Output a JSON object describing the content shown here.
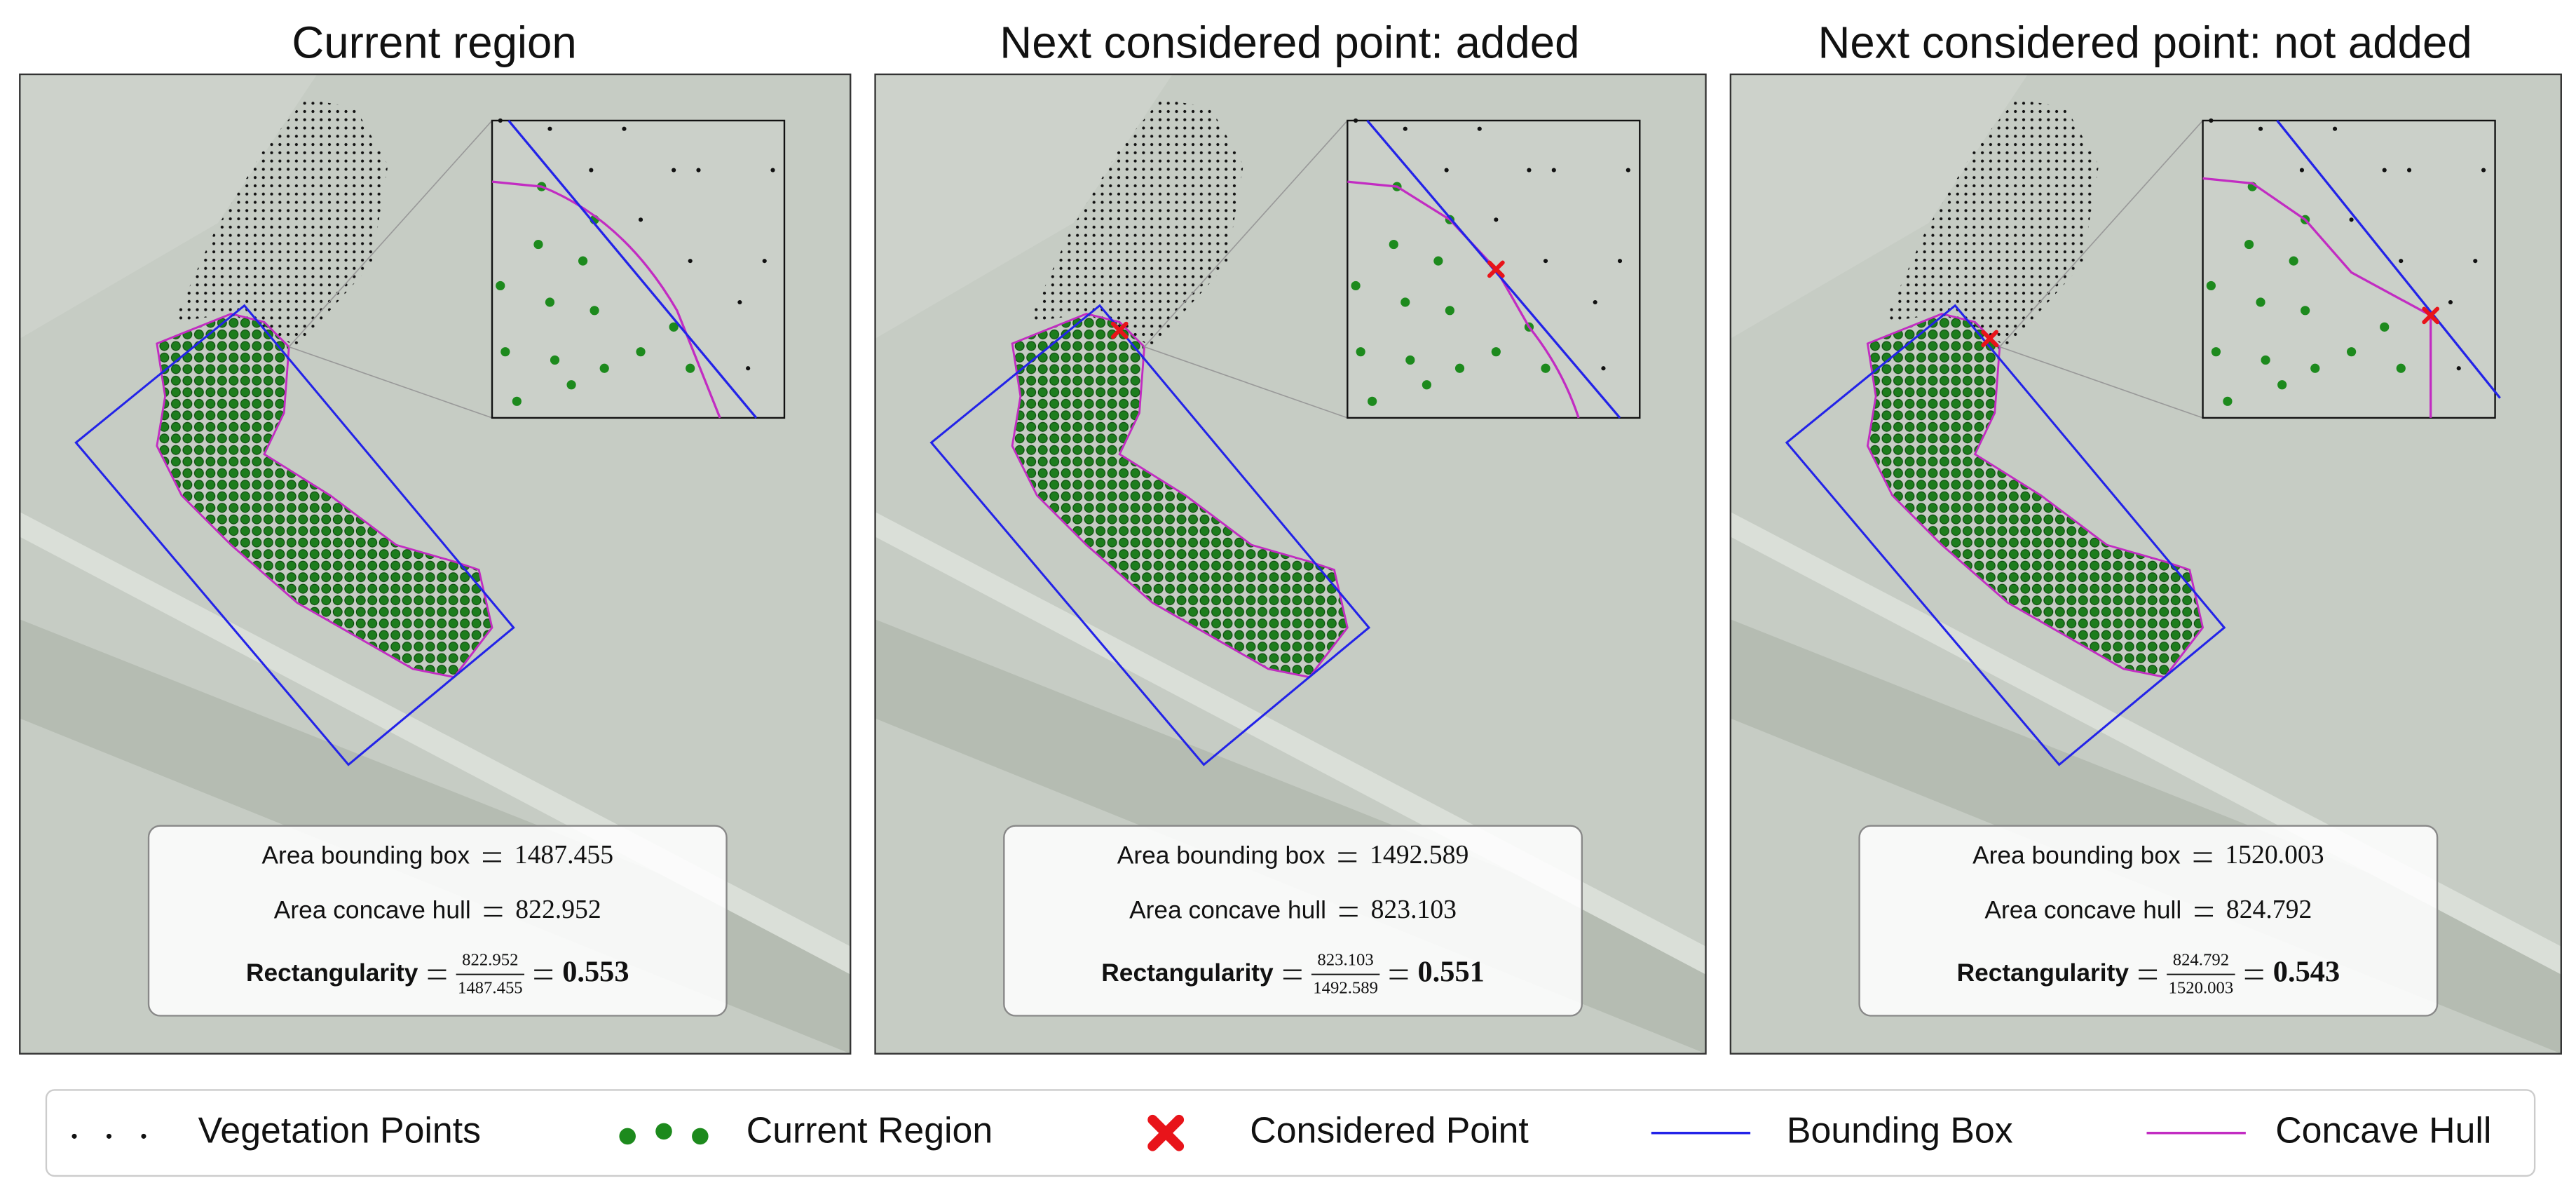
{
  "panels": [
    {
      "title": "Current region",
      "area_bounding_box": {
        "label": "Area bounding box",
        "value": "1487.455"
      },
      "area_concave_hull": {
        "label": "Area concave hull",
        "value": "822.952"
      },
      "rectangularity": {
        "label": "Rectangularity",
        "numerator": "822.952",
        "denominator": "1487.455",
        "result": "0.553"
      }
    },
    {
      "title": "Next considered point: added",
      "area_bounding_box": {
        "label": "Area bounding box",
        "value": "1492.589"
      },
      "area_concave_hull": {
        "label": "Area concave hull",
        "value": "823.103"
      },
      "rectangularity": {
        "label": "Rectangularity",
        "numerator": "823.103",
        "denominator": "1492.589",
        "result": "0.551"
      }
    },
    {
      "title": "Next considered point: not added",
      "area_bounding_box": {
        "label": "Area bounding box",
        "value": "1520.003"
      },
      "area_concave_hull": {
        "label": "Area concave hull",
        "value": "824.792"
      },
      "rectangularity": {
        "label": "Rectangularity",
        "numerator": "824.792",
        "denominator": "1520.003",
        "result": "0.543"
      }
    }
  ],
  "legend": [
    "Vegetation Points",
    "Current Region",
    "Considered Point",
    "Bounding Box",
    "Concave Hull"
  ]
}
